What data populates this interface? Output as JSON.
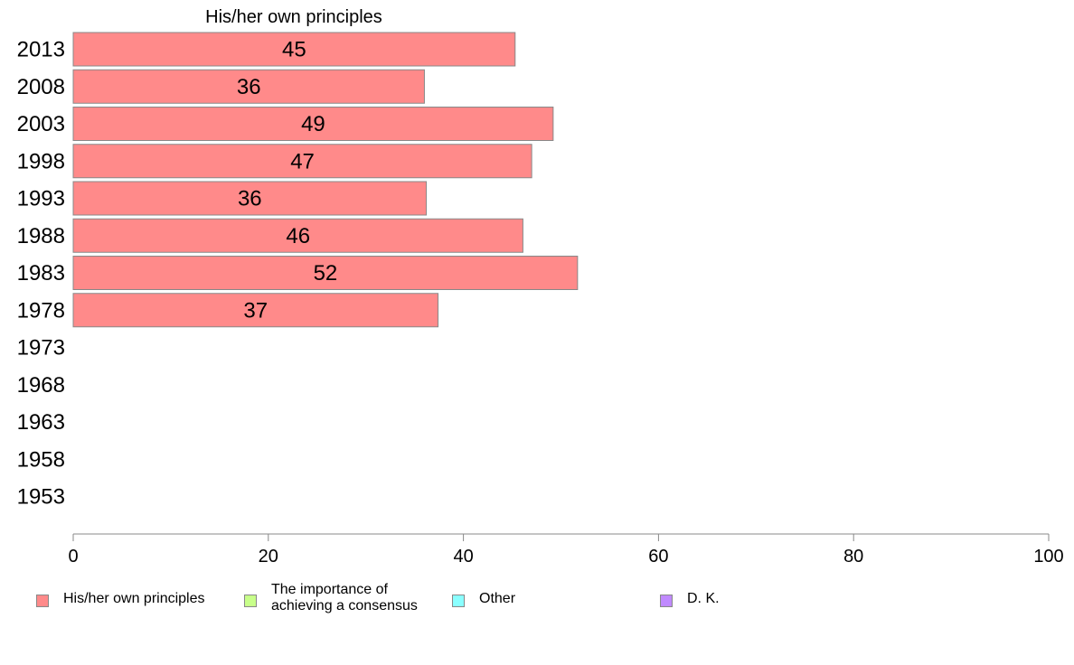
{
  "chart_data": {
    "type": "bar",
    "orientation": "horizontal",
    "title": "His/her own principles",
    "categories": [
      "2013",
      "2008",
      "2003",
      "1998",
      "1993",
      "1988",
      "1983",
      "1978",
      "1973",
      "1968",
      "1963",
      "1958",
      "1953"
    ],
    "series": [
      {
        "name": "His/her own principles",
        "color": "#ff8a8a",
        "values": [
          45.3,
          36,
          49.2,
          47,
          36.2,
          46.1,
          51.7,
          37.4,
          null,
          null,
          null,
          null,
          null
        ],
        "labels": [
          "45",
          "36",
          "49",
          "47",
          "36",
          "46",
          "52",
          "37",
          "",
          "",
          "",
          "",
          ""
        ]
      }
    ],
    "xlim": [
      0,
      100
    ],
    "xticks": [
      0,
      20,
      40,
      60,
      80,
      100
    ],
    "grid": false,
    "legend": {
      "position": "bottom",
      "items": [
        {
          "label": "His/her own principles",
          "color": "#ff8a8a"
        },
        {
          "label": "The importance of\nachieving a consensus",
          "color": "#c8ff8a"
        },
        {
          "label": "Other",
          "color": "#8affff"
        },
        {
          "label": "D. K.",
          "color": "#c08aff"
        }
      ]
    }
  }
}
